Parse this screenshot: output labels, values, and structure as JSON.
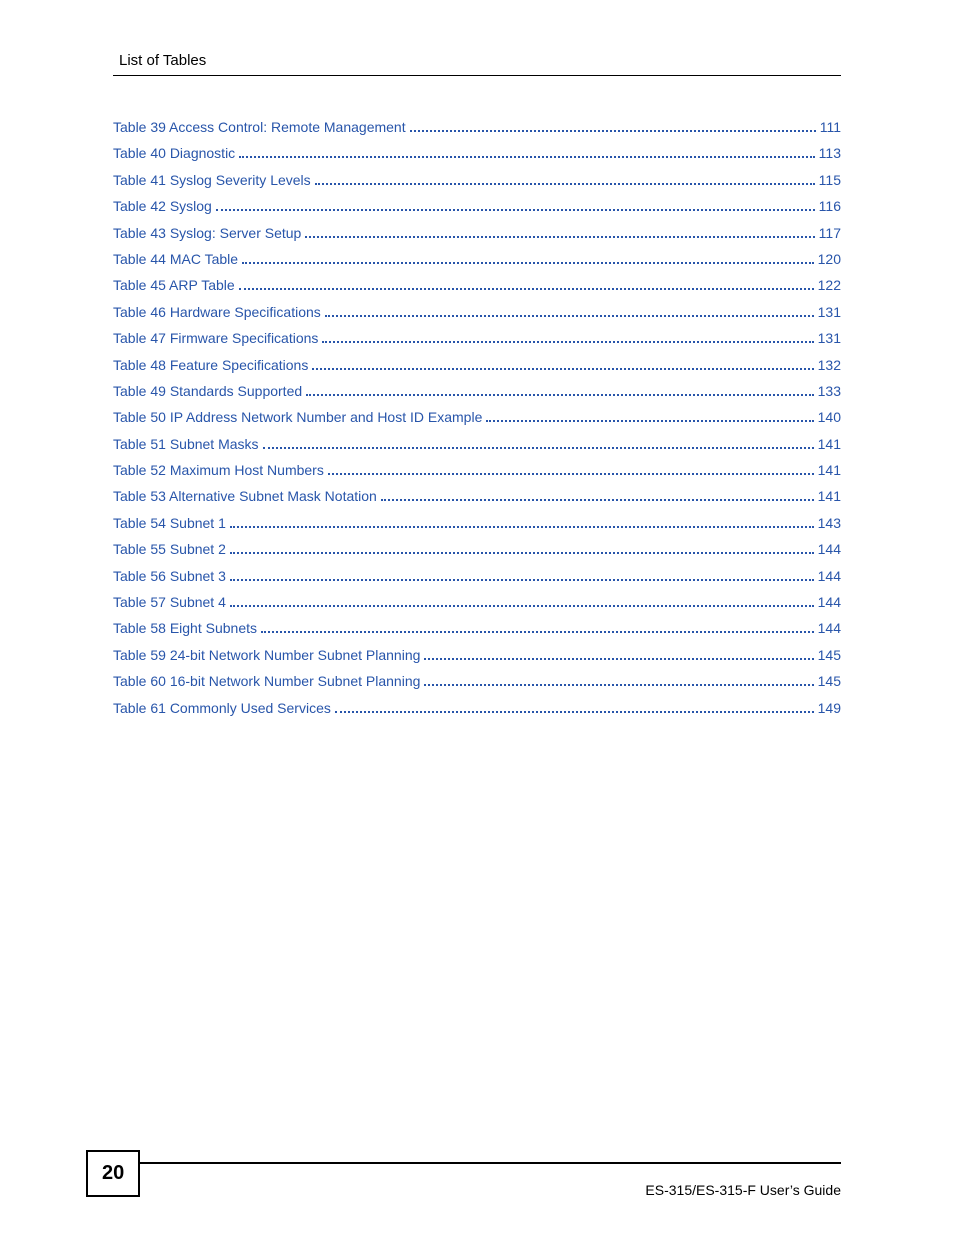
{
  "header": {
    "title": "List of Tables"
  },
  "link_color": "#2855aa",
  "toc": [
    {
      "label": "Table 39 Access Control: Remote Management",
      "page": "111"
    },
    {
      "label": "Table 40 Diagnostic",
      "page": "113"
    },
    {
      "label": "Table 41 Syslog Severity Levels",
      "page": "115"
    },
    {
      "label": "Table 42 Syslog",
      "page": "116"
    },
    {
      "label": "Table 43 Syslog: Server Setup",
      "page": "117"
    },
    {
      "label": "Table 44 MAC Table",
      "page": "120"
    },
    {
      "label": "Table 45 ARP Table",
      "page": "122"
    },
    {
      "label": "Table 46 Hardware Specifications",
      "page": "131"
    },
    {
      "label": "Table 47 Firmware Specifications",
      "page": "131"
    },
    {
      "label": "Table 48 Feature Specifications",
      "page": "132"
    },
    {
      "label": "Table 49 Standards Supported",
      "page": "133"
    },
    {
      "label": "Table 50 IP Address Network Number and Host ID Example",
      "page": "140"
    },
    {
      "label": "Table 51 Subnet Masks",
      "page": "141"
    },
    {
      "label": "Table 52 Maximum Host Numbers",
      "page": "141"
    },
    {
      "label": "Table 53 Alternative Subnet Mask Notation",
      "page": "141"
    },
    {
      "label": "Table 54 Subnet 1",
      "page": "143"
    },
    {
      "label": "Table 55 Subnet 2",
      "page": "144"
    },
    {
      "label": "Table 56 Subnet 3",
      "page": "144"
    },
    {
      "label": "Table 57 Subnet 4",
      "page": "144"
    },
    {
      "label": "Table 58 Eight Subnets",
      "page": "144"
    },
    {
      "label": "Table 59 24-bit Network Number Subnet Planning",
      "page": "145"
    },
    {
      "label": "Table 60 16-bit Network Number Subnet Planning",
      "page": "145"
    },
    {
      "label": "Table 61 Commonly Used Services",
      "page": "149"
    }
  ],
  "footer": {
    "page_number": "20",
    "guide_text": "ES-315/ES-315-F User’s Guide"
  }
}
